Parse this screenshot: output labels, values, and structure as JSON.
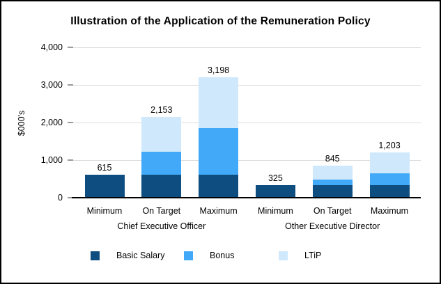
{
  "title": "Illustration of the Application of the Remuneration Policy",
  "chart_data": {
    "type": "bar",
    "stacked": true,
    "title": "Illustration of the Application of the Remuneration Policy",
    "ylabel": "$000's",
    "ylim": [
      0,
      4000
    ],
    "grid": true,
    "legend_position": "bottom",
    "y_ticks": [
      {
        "value": 0,
        "label": "0"
      },
      {
        "value": 1000,
        "label": "1,000"
      },
      {
        "value": 2000,
        "label": "2,000"
      },
      {
        "value": 3000,
        "label": "3,000"
      },
      {
        "value": 4000,
        "label": "4,000"
      }
    ],
    "series_order": [
      "basic_salary",
      "bonus",
      "ltip"
    ],
    "groups": [
      {
        "label": "Chief Executive Officer",
        "bars": [
          {
            "category": "Minimum",
            "total": 615,
            "total_label": "615",
            "segments": {
              "basic_salary": 615,
              "bonus": 0,
              "ltip": 0
            }
          },
          {
            "category": "On Target",
            "total": 2153,
            "total_label": "2,153",
            "segments": {
              "basic_salary": 615,
              "bonus": 615,
              "ltip": 923
            }
          },
          {
            "category": "Maximum",
            "total": 3198,
            "total_label": "3,198",
            "segments": {
              "basic_salary": 615,
              "bonus": 1230,
              "ltip": 1353
            }
          }
        ]
      },
      {
        "label": "Other Executive Director",
        "bars": [
          {
            "category": "Minimum",
            "total": 325,
            "total_label": "325",
            "segments": {
              "basic_salary": 325,
              "bonus": 0,
              "ltip": 0
            }
          },
          {
            "category": "On Target",
            "total": 845,
            "total_label": "845",
            "segments": {
              "basic_salary": 325,
              "bonus": 162.5,
              "ltip": 357.5
            }
          },
          {
            "category": "Maximum",
            "total": 1203,
            "total_label": "1,203",
            "segments": {
              "basic_salary": 325,
              "bonus": 325,
              "ltip": 553
            }
          }
        ]
      }
    ]
  },
  "legend": [
    {
      "key": "basic_salary",
      "label": "Basic Salary",
      "color": "#0e4d80"
    },
    {
      "key": "bonus",
      "label": "Bonus",
      "color": "#41a9f7"
    },
    {
      "key": "ltip",
      "label": "LTiP",
      "color": "#cfe8fb"
    }
  ],
  "colors": {
    "basic_salary": "#0e4d80",
    "bonus": "#41a9f7",
    "ltip": "#cfe8fb",
    "gridline": "#dcdcdc",
    "tick": "#9a9a9a",
    "axis": "#000000",
    "text": "#000000",
    "background": "#ffffff",
    "border": "#000000"
  }
}
